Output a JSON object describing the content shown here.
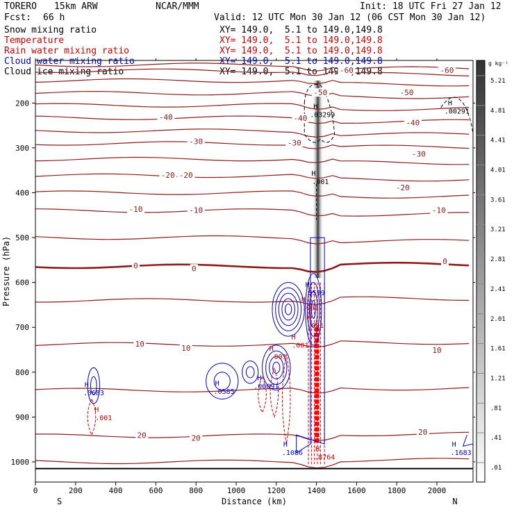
{
  "header": {
    "model": "TORERO",
    "grid": "15km ARW",
    "center": "NCAR/MMM",
    "init": "Init: 18 UTC Fri 27 Jan 12",
    "fcst_label": "Fcst:",
    "fcst_value": "66 h",
    "valid": "Valid: 12 UTC Mon 30 Jan 12 (06 CST Mon 30 Jan 12)"
  },
  "fields": [
    {
      "name": "Snow mixing ratio",
      "color": "#000000",
      "xy": "XY= 149.0,  5.1 to 149.0,149.8"
    },
    {
      "name": "Temperature",
      "color": "#cc0000",
      "xy": "XY= 149.0,  5.1 to 149.0,149.8"
    },
    {
      "name": "Rain water mixing ratio",
      "color": "#cc0000",
      "xy": "XY= 149.0,  5.1 to 149.0,149.8"
    },
    {
      "name": "Cloud water mixing ratio",
      "color": "#0000cc",
      "xy": "XY= 149.0,  5.1 to 149.0,149.8"
    },
    {
      "name": "Cloud ice mixing ratio",
      "color": "#000000",
      "xy": "XY= 149.0,  5.1 to 149.0,149.8"
    }
  ],
  "chart_data": {
    "type": "cross-section contour",
    "xlabel": "Distance (km)",
    "ylabel": "Pressure (hPa)",
    "xlim": [
      0,
      2180
    ],
    "ylim": [
      1045,
      105
    ],
    "x_ticks": [
      0,
      200,
      400,
      600,
      800,
      1000,
      1200,
      1400,
      1600,
      1800,
      2000
    ],
    "y_ticks": [
      200,
      300,
      400,
      500,
      600,
      700,
      800,
      900,
      1000
    ],
    "x_end_labels": {
      "left": "S",
      "right": "N"
    },
    "colorbar": {
      "unit": "g kg⁻¹",
      "levels": [
        ".01",
        ".41",
        ".81",
        "1.21",
        "1.61",
        "2.01",
        "2.41",
        "2.81",
        "3.21",
        "3.61",
        "4.01",
        "4.41",
        "4.81",
        "5.21"
      ]
    },
    "temperature_labels": [
      {
        "text": "-60",
        "x": 1550,
        "p": 128
      },
      {
        "text": "-60",
        "x": 2050,
        "p": 128
      },
      {
        "text": "-50",
        "x": 1420,
        "p": 178
      },
      {
        "text": "-50",
        "x": 1850,
        "p": 178
      },
      {
        "text": "-40",
        "x": 650,
        "p": 233
      },
      {
        "text": "-40",
        "x": 1320,
        "p": 235
      },
      {
        "text": "-40",
        "x": 1880,
        "p": 245
      },
      {
        "text": "-30",
        "x": 800,
        "p": 287
      },
      {
        "text": "-30",
        "x": 1290,
        "p": 290
      },
      {
        "text": "-30",
        "x": 1910,
        "p": 315
      },
      {
        "text": "-20",
        "x": 660,
        "p": 362
      },
      {
        "text": "-20",
        "x": 750,
        "p": 362
      },
      {
        "text": "-20",
        "x": 1830,
        "p": 390
      },
      {
        "text": "-10",
        "x": 500,
        "p": 438
      },
      {
        "text": "-10",
        "x": 800,
        "p": 440
      },
      {
        "text": "-10",
        "x": 2010,
        "p": 440
      },
      {
        "text": "0",
        "x": 500,
        "p": 564
      },
      {
        "text": "0",
        "x": 790,
        "p": 570
      },
      {
        "text": "0",
        "x": 2040,
        "p": 554
      },
      {
        "text": "10",
        "x": 520,
        "p": 738
      },
      {
        "text": "10",
        "x": 750,
        "p": 748
      },
      {
        "text": "10",
        "x": 2000,
        "p": 752
      },
      {
        "text": "20",
        "x": 530,
        "p": 942
      },
      {
        "text": "20",
        "x": 800,
        "p": 948
      },
      {
        "text": "20",
        "x": 1930,
        "p": 935
      }
    ],
    "maxima": [
      {
        "text": ".03299",
        "x": 1430,
        "p": 230,
        "color": "#000000"
      },
      {
        "text": ".00291",
        "x": 2100,
        "p": 222,
        "color": "#000000"
      },
      {
        "text": ".001",
        "x": 1420,
        "p": 379,
        "color": "#000000"
      },
      {
        "text": ".5539",
        "x": 1390,
        "p": 627,
        "color": "#0000cc"
      },
      {
        "text": ".001",
        "x": 1370,
        "p": 660,
        "color": "#cc0000"
      },
      {
        "text": ".001",
        "x": 1395,
        "p": 700,
        "color": "#cc0000"
      },
      {
        "text": ".001",
        "x": 1320,
        "p": 744,
        "color": "#cc0000"
      },
      {
        "text": ".001",
        "x": 1210,
        "p": 769,
        "color": "#cc0000"
      },
      {
        "text": ".00091",
        "x": 1150,
        "p": 835,
        "color": "#0000cc"
      },
      {
        "text": ".0585",
        "x": 940,
        "p": 847,
        "color": "#0000cc"
      },
      {
        "text": ".0683",
        "x": 290,
        "p": 850,
        "color": "#0000cc"
      },
      {
        "text": ".001",
        "x": 340,
        "p": 906,
        "color": "#cc0000"
      },
      {
        "text": ".1086",
        "x": 1280,
        "p": 983,
        "color": "#0000cc"
      },
      {
        "text": ".8764",
        "x": 1440,
        "p": 993,
        "color": "#cc0000"
      },
      {
        "text": ".1683",
        "x": 2120,
        "p": 983,
        "color": "#0000cc"
      }
    ]
  }
}
